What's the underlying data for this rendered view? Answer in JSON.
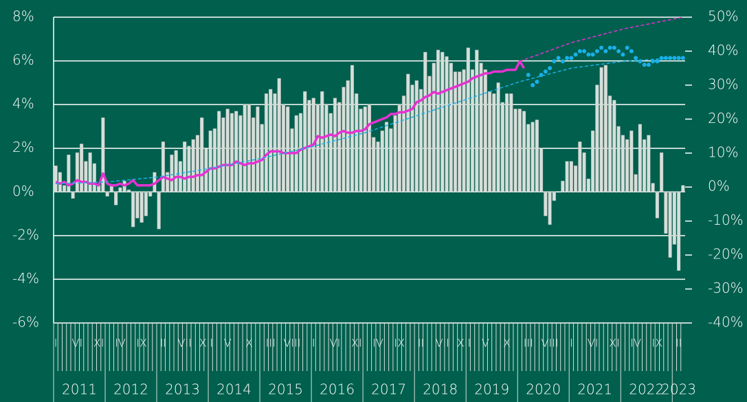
{
  "chart_data": {
    "type": "bar",
    "background": "#005f4d",
    "ylim": [
      -6,
      8
    ],
    "yticks": [
      {
        "value": -6,
        "label": "-6%"
      },
      {
        "value": -4,
        "label": "-4%"
      },
      {
        "value": -2,
        "label": "-2%"
      },
      {
        "value": 0,
        "label": "0%"
      },
      {
        "value": 2,
        "label": "2%"
      },
      {
        "value": 4,
        "label": "4%"
      },
      {
        "value": 6,
        "label": "6%"
      },
      {
        "value": 8,
        "label": "8%"
      }
    ],
    "y2lim": [
      -40,
      50
    ],
    "y2ticks": [
      {
        "value": -40,
        "label": "-40%"
      },
      {
        "value": -30,
        "label": "-30%"
      },
      {
        "value": -20,
        "label": "-20%"
      },
      {
        "value": -10,
        "label": "-10%"
      },
      {
        "value": 0,
        "label": "0%"
      },
      {
        "value": 10,
        "label": "10%"
      },
      {
        "value": 20,
        "label": "20%"
      },
      {
        "value": 30,
        "label": "30%"
      },
      {
        "value": 40,
        "label": "40%"
      },
      {
        "value": 50,
        "label": "50%"
      }
    ],
    "grid": true,
    "categories": [
      "I",
      null,
      null,
      null,
      null,
      "VI",
      null,
      null,
      null,
      null,
      "XI",
      null,
      null,
      null,
      null,
      "IV",
      null,
      null,
      null,
      null,
      "IX",
      null,
      null,
      null,
      null,
      "II",
      null,
      null,
      null,
      null,
      "VII",
      null,
      null,
      null,
      null,
      "XII",
      null,
      null,
      null,
      null,
      "V",
      null,
      null,
      null,
      null,
      "X",
      null,
      null,
      null,
      null,
      "III",
      null,
      null,
      null,
      null,
      "VIII",
      null,
      null,
      null,
      null,
      "I",
      null,
      null,
      null,
      null,
      "VI",
      null,
      null,
      null,
      null,
      "XI",
      null,
      null,
      null,
      null,
      "IV",
      null,
      null,
      null,
      null,
      "IX",
      null,
      null,
      null,
      null,
      "II",
      null,
      null,
      null,
      null,
      "VII",
      null,
      null,
      null,
      null,
      "XII",
      null,
      null,
      null,
      null,
      "V",
      null,
      null,
      null,
      null,
      "X",
      null,
      null,
      null,
      null,
      "III",
      null,
      null,
      null,
      null,
      "VIII",
      null,
      null,
      null,
      null,
      "I",
      null,
      null,
      null,
      null,
      "VI",
      null,
      null,
      null,
      null,
      "XI",
      null,
      null,
      null,
      null,
      "IV",
      null,
      null,
      null,
      null,
      "IX",
      null,
      null,
      null,
      null,
      "II",
      null
    ],
    "years": [
      "2011",
      "2012",
      "2013",
      "2014",
      "2015",
      "2016",
      "2017",
      "2018",
      "2019",
      "2020",
      "2021",
      "2022",
      "2023"
    ],
    "series": [
      {
        "type": "bar",
        "color": "#d6dfda",
        "values": [
          1.2,
          0.9,
          0.3,
          1.7,
          -0.3,
          1.8,
          2.2,
          1.4,
          1.8,
          1.3,
          0.3,
          3.4,
          -0.2,
          0.3,
          -0.6,
          0.2,
          0.5,
          0.1,
          -1.6,
          -1.2,
          -1.4,
          -1.1,
          -0.2,
          0.9,
          -1.7,
          2.3,
          0.9,
          1.7,
          1.9,
          1.4,
          2.3,
          2.1,
          2.4,
          2.6,
          3.4,
          2.0,
          2.8,
          2.9,
          3.7,
          3.4,
          3.8,
          3.6,
          3.7,
          3.5,
          4.0,
          4.0,
          3.4,
          3.9,
          3.1,
          4.5,
          4.7,
          4.5,
          5.2,
          4.0,
          3.9,
          2.9,
          3.5,
          3.6,
          4.6,
          4.2,
          4.3,
          4.0,
          4.6,
          4.0,
          3.6,
          4.3,
          4.1,
          4.8,
          5.1,
          5.8,
          4.5,
          3.8,
          3.9,
          4.0,
          2.5,
          2.3,
          2.8,
          3.2,
          2.9,
          3.5,
          4.0,
          4.4,
          5.4,
          4.9,
          5.1,
          4.7,
          6.4,
          5.3,
          5.9,
          6.5,
          6.4,
          6.2,
          5.9,
          5.5,
          5.5,
          5.6,
          6.6,
          5.6,
          6.5,
          5.9,
          5.6,
          4.6,
          4.5,
          5.0,
          4.1,
          4.5,
          4.5,
          3.8,
          3.8,
          3.7,
          3.1,
          3.2,
          3.3,
          2.0,
          -1.1,
          -1.5,
          -0.4,
          0.0,
          0.5,
          1.4,
          1.4,
          1.2,
          2.3,
          1.8,
          0.6,
          2.8,
          4.9,
          5.7,
          5.8,
          4.4,
          4.2,
          3.0,
          2.6,
          2.4,
          2.8,
          0.8,
          3.1,
          2.4,
          2.6,
          0.4,
          -1.2,
          1.8,
          -1.9,
          -3.0,
          -2.4,
          -3.6,
          0.3
        ]
      },
      {
        "type": "line",
        "axis": "y2",
        "color": "#e632d2",
        "values": [
          1.5,
          1,
          1.5,
          0.5,
          1,
          2,
          1.5,
          1.5,
          1,
          1,
          0.5,
          4,
          1,
          0.5,
          0.5,
          1,
          0.5,
          1,
          2,
          0.5,
          0.5,
          0.5,
          0.5,
          1,
          2,
          3,
          2.5,
          2,
          3,
          3,
          2.5,
          3,
          3,
          3.5,
          3.5,
          4.5,
          5.5,
          5.5,
          6,
          6.5,
          6.5,
          6.5,
          7.5,
          7,
          6.5,
          7,
          7,
          7.5,
          8,
          9.5,
          10.5,
          10.5,
          10.5,
          10,
          10,
          10,
          10,
          11,
          11.5,
          12,
          12.5,
          15,
          14.5,
          15,
          15.5,
          15,
          16,
          16.5,
          16,
          16,
          16.5,
          16.5,
          17,
          18.5,
          19,
          19.5,
          20,
          20.5,
          21.5,
          21.5,
          22,
          22,
          22.5,
          23,
          25,
          25.5,
          26.5,
          27,
          28,
          27.5,
          28,
          28.5,
          29,
          29.5,
          30,
          30.5,
          31,
          32,
          32.5,
          33,
          33.5,
          33.5,
          34,
          34,
          34,
          34.5,
          34.5,
          34.5,
          37,
          35,
          null,
          null,
          null,
          null,
          null,
          null,
          null,
          null,
          null,
          null,
          null,
          null,
          null,
          null,
          null,
          null,
          null,
          null,
          null,
          null,
          null,
          null,
          null,
          null,
          null,
          null,
          null,
          null,
          null,
          null,
          null,
          null,
          null,
          null,
          null,
          null,
          null
        ]
      },
      {
        "type": "dashed",
        "axis": "y2",
        "color": "#1ab0e8",
        "x": [
          0,
          12,
          24,
          36,
          48,
          60,
          72,
          84,
          96,
          108,
          120,
          132,
          144,
          146
        ],
        "values": [
          1,
          1.5,
          3,
          5.5,
          8.5,
          12,
          16,
          21,
          26,
          31,
          35,
          37,
          38,
          38
        ]
      },
      {
        "type": "dashed",
        "axis": "y2",
        "color": "#e632d2",
        "x": [
          108,
          120,
          132,
          146
        ],
        "values": [
          37,
          42.5,
          46.5,
          50
        ]
      },
      {
        "type": "dots",
        "axis": "y2",
        "color": "#1ab0e8",
        "x": [
          110,
          111,
          112,
          113,
          114,
          115,
          116,
          117,
          118,
          119,
          120,
          121,
          122,
          123,
          124,
          125,
          126,
          127,
          128,
          129,
          130,
          131,
          132,
          133,
          134,
          135,
          136,
          137,
          138,
          139,
          140,
          141,
          142,
          143,
          144,
          145,
          146
        ],
        "values": [
          33,
          30,
          31,
          33,
          34,
          35,
          37,
          38,
          37,
          38,
          38,
          39,
          40,
          40,
          39,
          39,
          40,
          41,
          40,
          41,
          41,
          40,
          39,
          41,
          40,
          38,
          37,
          36,
          36,
          37,
          37,
          38,
          38,
          38,
          38,
          38,
          38
        ]
      }
    ]
  }
}
